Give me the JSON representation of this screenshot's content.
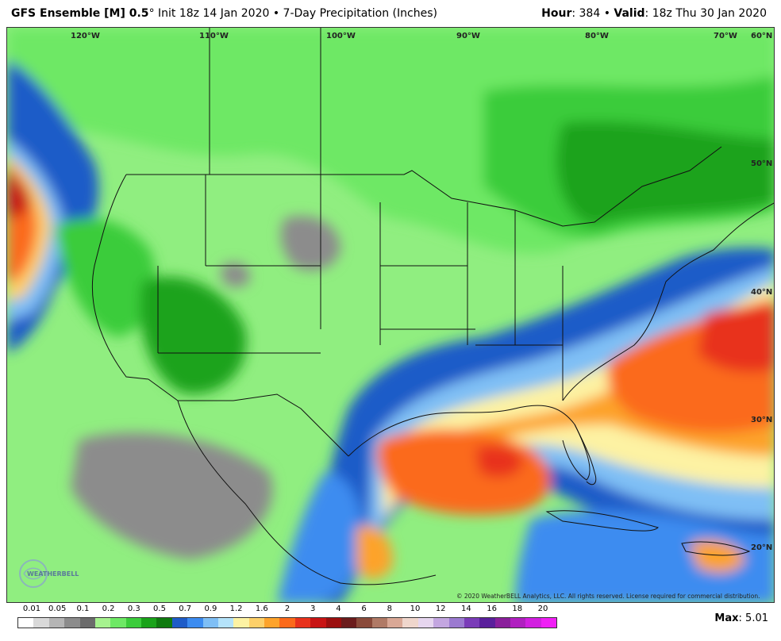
{
  "header": {
    "model_name": "GFS Ensemble [M] 0.5",
    "degree_symbol": "°",
    "init_text": " Init 18z 14 Jan 2020 • 7-Day Precipitation (Inches)",
    "hour_label": "Hour",
    "hour_value": ": 384 • ",
    "valid_label": "Valid",
    "valid_value": ": 18z Thu 30 Jan 2020"
  },
  "map": {
    "longitude_labels": [
      "120°W",
      "110°W",
      "100°W",
      "90°W",
      "80°W",
      "70°W",
      "60°N"
    ],
    "latitude_labels": [
      "50°N",
      "40°N",
      "30°N",
      "20°N"
    ],
    "copyright": "© 2020 WeatherBELL Analytics, LLC. All rights reserved. License required for commercial distribution.",
    "logo_text": "WEATHERBELL"
  },
  "legend": {
    "labels": [
      "0.01",
      "0.05",
      "0.1",
      "0.2",
      "0.3",
      "0.5",
      "0.7",
      "0.9",
      "1.2",
      "1.6",
      "2",
      "3",
      "4",
      "6",
      "8",
      "10",
      "12",
      "14",
      "16",
      "18",
      "20"
    ],
    "colors": [
      "#ffffff",
      "#d9d9d9",
      "#b5b5b5",
      "#8c8c8c",
      "#6b6b6b",
      "#a6f28f",
      "#6ee865",
      "#3bcc3b",
      "#1aa31a",
      "#0f7a0f",
      "#1e5cc8",
      "#3c8cf0",
      "#7fbff5",
      "#b5e3fa",
      "#fdf2a3",
      "#fdd06a",
      "#fda32b",
      "#fb6a1a",
      "#e8321c",
      "#c81414",
      "#9b0f0f",
      "#6b1c1c",
      "#8a4a3a",
      "#b07a66",
      "#d9a896",
      "#efd6cc",
      "#e6d6ef",
      "#c3a6e0",
      "#9b7ad0",
      "#7a3cb8",
      "#5a1f9b",
      "#8a1f9b",
      "#b01fc0",
      "#d21fe0",
      "#f01ff5"
    ]
  },
  "max": {
    "label": "Max",
    "value": ": 5.01"
  }
}
